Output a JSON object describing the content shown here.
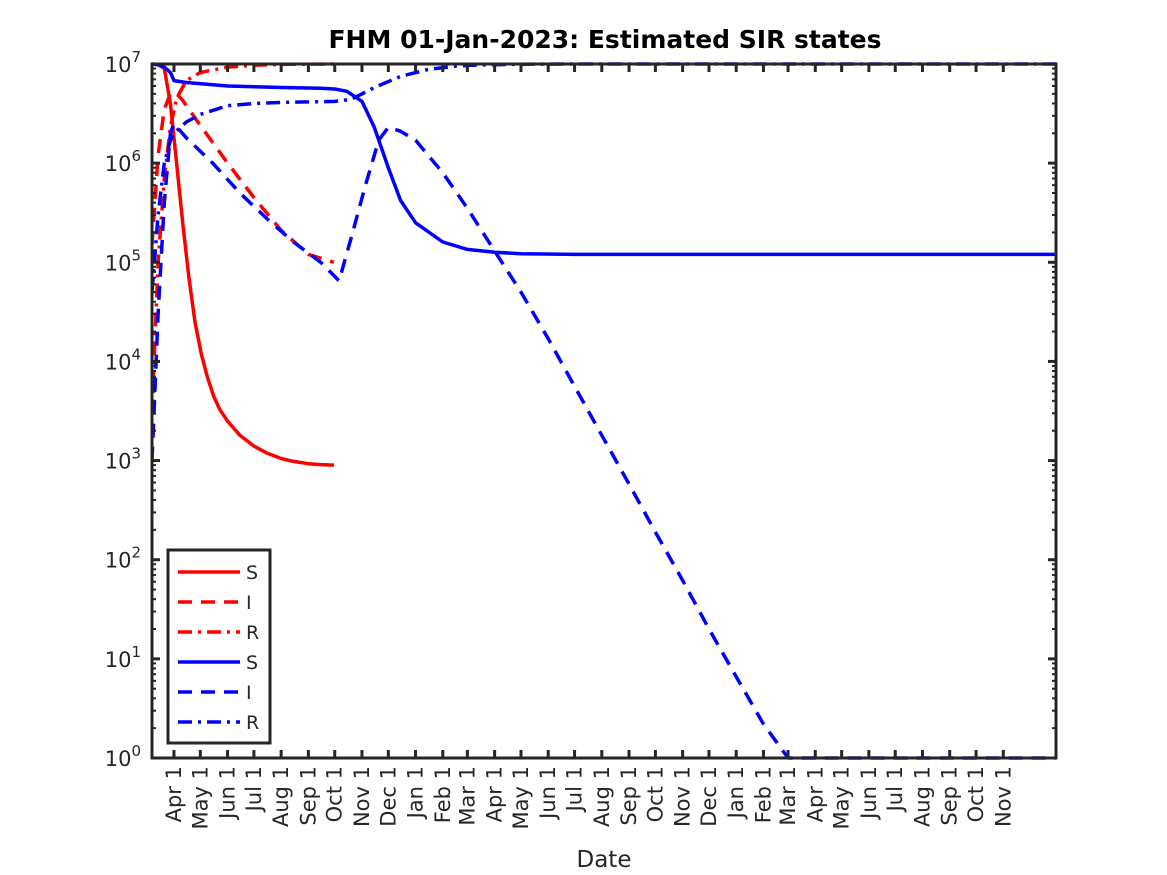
{
  "chart_data": {
    "type": "line",
    "title": "FHM 01-Jan-2023: Estimated SIR states",
    "xlabel": "Date",
    "ylabel": "",
    "yscale": "log",
    "ylim": [
      1,
      10000000
    ],
    "xlim": [
      "2020-03-07",
      "2022-12-31"
    ],
    "grid": false,
    "legend_position": "bottom-left",
    "y_ticks": [
      {
        "base": "10",
        "exp": "0"
      },
      {
        "base": "10",
        "exp": "1"
      },
      {
        "base": "10",
        "exp": "2"
      },
      {
        "base": "10",
        "exp": "3"
      },
      {
        "base": "10",
        "exp": "4"
      },
      {
        "base": "10",
        "exp": "5"
      },
      {
        "base": "10",
        "exp": "6"
      },
      {
        "base": "10",
        "exp": "7"
      }
    ],
    "x_ticks": [
      {
        "date": "2020-04-01",
        "label": "Apr 1"
      },
      {
        "date": "2020-05-01",
        "label": "May 1"
      },
      {
        "date": "2020-06-01",
        "label": "Jun 1"
      },
      {
        "date": "2020-07-01",
        "label": "Jul 1"
      },
      {
        "date": "2020-08-01",
        "label": "Aug 1"
      },
      {
        "date": "2020-09-01",
        "label": "Sep 1"
      },
      {
        "date": "2020-10-01",
        "label": "Oct 1"
      },
      {
        "date": "2020-11-01",
        "label": "Nov 1"
      },
      {
        "date": "2020-12-01",
        "label": "Dec 1"
      },
      {
        "date": "2021-01-01",
        "label": "Jan 1"
      },
      {
        "date": "2021-02-01",
        "label": "Feb 1"
      },
      {
        "date": "2021-03-01",
        "label": "Mar 1"
      },
      {
        "date": "2021-04-01",
        "label": "Apr 1"
      },
      {
        "date": "2021-05-01",
        "label": "May 1"
      },
      {
        "date": "2021-06-01",
        "label": "Jun 1"
      },
      {
        "date": "2021-07-01",
        "label": "Jul 1"
      },
      {
        "date": "2021-08-01",
        "label": "Aug 1"
      },
      {
        "date": "2021-09-01",
        "label": "Sep 1"
      },
      {
        "date": "2021-10-01",
        "label": "Oct 1"
      },
      {
        "date": "2021-11-01",
        "label": "Nov 1"
      },
      {
        "date": "2021-12-01",
        "label": "Dec 1"
      },
      {
        "date": "2022-01-01",
        "label": "Jan 1"
      },
      {
        "date": "2022-02-01",
        "label": "Feb 1"
      },
      {
        "date": "2022-03-01",
        "label": "Mar 1"
      },
      {
        "date": "2022-04-01",
        "label": "Apr 1"
      },
      {
        "date": "2022-05-01",
        "label": "May 1"
      },
      {
        "date": "2022-06-01",
        "label": "Jun 1"
      },
      {
        "date": "2022-07-01",
        "label": "Jul 1"
      },
      {
        "date": "2022-08-01",
        "label": "Aug 1"
      },
      {
        "date": "2022-09-01",
        "label": "Sep 1"
      },
      {
        "date": "2022-10-01",
        "label": "Oct 1"
      },
      {
        "date": "2022-11-01",
        "label": "Nov 1"
      }
    ],
    "series": [
      {
        "name": "S",
        "color": "#ff0000",
        "dash": "solid",
        "points": [
          [
            "2020-03-07",
            10000000
          ],
          [
            "2020-03-14",
            9900000
          ],
          [
            "2020-03-21",
            9000000
          ],
          [
            "2020-03-28",
            4000000
          ],
          [
            "2020-04-04",
            1000000
          ],
          [
            "2020-04-11",
            250000
          ],
          [
            "2020-04-18",
            70000
          ],
          [
            "2020-04-25",
            25000
          ],
          [
            "2020-05-02",
            12000
          ],
          [
            "2020-05-09",
            7000
          ],
          [
            "2020-05-16",
            4500
          ],
          [
            "2020-05-23",
            3300
          ],
          [
            "2020-06-01",
            2500
          ],
          [
            "2020-06-15",
            1800
          ],
          [
            "2020-07-01",
            1400
          ],
          [
            "2020-07-15",
            1200
          ],
          [
            "2020-08-01",
            1050
          ],
          [
            "2020-08-15",
            980
          ],
          [
            "2020-09-01",
            930
          ],
          [
            "2020-09-15",
            910
          ],
          [
            "2020-09-30",
            900
          ]
        ]
      },
      {
        "name": "I",
        "color": "#ff0000",
        "dash": "dashed",
        "points": [
          [
            "2020-03-07",
            150000
          ],
          [
            "2020-03-14",
            1200000
          ],
          [
            "2020-03-21",
            3500000
          ],
          [
            "2020-03-28",
            5000000
          ],
          [
            "2020-04-02",
            5200000
          ],
          [
            "2020-04-10",
            4400000
          ],
          [
            "2020-05-01",
            2400000
          ],
          [
            "2020-06-01",
            1000000
          ],
          [
            "2020-07-01",
            450000
          ],
          [
            "2020-08-01",
            210000
          ],
          [
            "2020-09-01",
            120000
          ],
          [
            "2020-09-30",
            100000
          ]
        ]
      },
      {
        "name": "R",
        "color": "#ff0000",
        "dash": "dashdot",
        "points": [
          [
            "2020-03-07",
            3000
          ],
          [
            "2020-03-14",
            100000
          ],
          [
            "2020-03-21",
            700000
          ],
          [
            "2020-03-28",
            2300000
          ],
          [
            "2020-04-04",
            4500000
          ],
          [
            "2020-04-15",
            6800000
          ],
          [
            "2020-05-01",
            8200000
          ],
          [
            "2020-06-01",
            9300000
          ],
          [
            "2020-07-01",
            9700000
          ],
          [
            "2020-08-01",
            9900000
          ],
          [
            "2020-09-30",
            10000000
          ]
        ]
      },
      {
        "name": "S",
        "color": "#0000ff",
        "dash": "solid",
        "points": [
          [
            "2020-03-07",
            10000000
          ],
          [
            "2020-03-14",
            9800000
          ],
          [
            "2020-03-21",
            9300000
          ],
          [
            "2020-03-28",
            8200000
          ],
          [
            "2020-04-01",
            6800000
          ],
          [
            "2020-04-15",
            6500000
          ],
          [
            "2020-06-01",
            6000000
          ],
          [
            "2020-08-01",
            5800000
          ],
          [
            "2020-09-15",
            5700000
          ],
          [
            "2020-10-01",
            5600000
          ],
          [
            "2020-10-15",
            5300000
          ],
          [
            "2020-11-01",
            4200000
          ],
          [
            "2020-11-15",
            2300000
          ],
          [
            "2020-12-01",
            900000
          ],
          [
            "2020-12-15",
            420000
          ],
          [
            "2021-01-01",
            250000
          ],
          [
            "2021-02-01",
            160000
          ],
          [
            "2021-03-01",
            135000
          ],
          [
            "2021-04-01",
            126000
          ],
          [
            "2021-05-01",
            122000
          ],
          [
            "2021-07-01",
            120000
          ],
          [
            "2022-12-31",
            120000
          ]
        ]
      },
      {
        "name": "I",
        "color": "#0000ff",
        "dash": "dashed",
        "points": [
          [
            "2020-03-07",
            1000
          ],
          [
            "2020-03-14",
            30000
          ],
          [
            "2020-03-21",
            400000
          ],
          [
            "2020-03-28",
            2000000
          ],
          [
            "2020-04-01",
            2500000
          ],
          [
            "2020-04-15",
            1800000
          ],
          [
            "2020-05-15",
            1000000
          ],
          [
            "2020-06-15",
            500000
          ],
          [
            "2020-07-15",
            280000
          ],
          [
            "2020-08-15",
            160000
          ],
          [
            "2020-09-15",
            100000
          ],
          [
            "2020-10-06",
            65000
          ],
          [
            "2020-10-20",
            180000
          ],
          [
            "2020-11-05",
            600000
          ],
          [
            "2020-11-20",
            1700000
          ],
          [
            "2020-12-01",
            2300000
          ],
          [
            "2020-12-15",
            2100000
          ],
          [
            "2021-01-01",
            1700000
          ],
          [
            "2021-02-01",
            800000
          ],
          [
            "2021-03-01",
            350000
          ],
          [
            "2021-04-01",
            130000
          ],
          [
            "2021-05-01",
            50000
          ],
          [
            "2021-06-01",
            17000
          ],
          [
            "2021-07-01",
            5600
          ],
          [
            "2021-08-01",
            1800
          ],
          [
            "2021-09-01",
            580
          ],
          [
            "2021-10-01",
            190
          ],
          [
            "2021-11-01",
            62
          ],
          [
            "2021-12-01",
            20
          ],
          [
            "2022-01-01",
            6.6
          ],
          [
            "2022-02-01",
            2.2
          ],
          [
            "2022-03-01",
            1
          ],
          [
            "2022-06-01",
            1
          ],
          [
            "2022-09-15",
            1
          ],
          [
            "2022-11-01",
            1
          ],
          [
            "2022-12-31",
            1
          ]
        ]
      },
      {
        "name": "R",
        "color": "#0000ff",
        "dash": "dashdot",
        "points": [
          [
            "2020-03-07",
            50000
          ],
          [
            "2020-03-14",
            300000
          ],
          [
            "2020-03-21",
            1000000
          ],
          [
            "2020-03-28",
            1700000
          ],
          [
            "2020-04-01",
            2000000
          ],
          [
            "2020-04-15",
            2600000
          ],
          [
            "2020-05-01",
            3100000
          ],
          [
            "2020-06-01",
            3800000
          ],
          [
            "2020-07-01",
            4000000
          ],
          [
            "2020-08-01",
            4100000
          ],
          [
            "2020-09-01",
            4150000
          ],
          [
            "2020-10-01",
            4200000
          ],
          [
            "2020-10-20",
            4400000
          ],
          [
            "2020-11-15",
            5800000
          ],
          [
            "2020-12-15",
            7500000
          ],
          [
            "2021-01-15",
            8800000
          ],
          [
            "2021-02-15",
            9500000
          ],
          [
            "2021-03-15",
            9800000
          ],
          [
            "2021-05-01",
            9950000
          ],
          [
            "2021-07-01",
            10000000
          ],
          [
            "2022-12-31",
            10000000
          ]
        ]
      }
    ]
  }
}
